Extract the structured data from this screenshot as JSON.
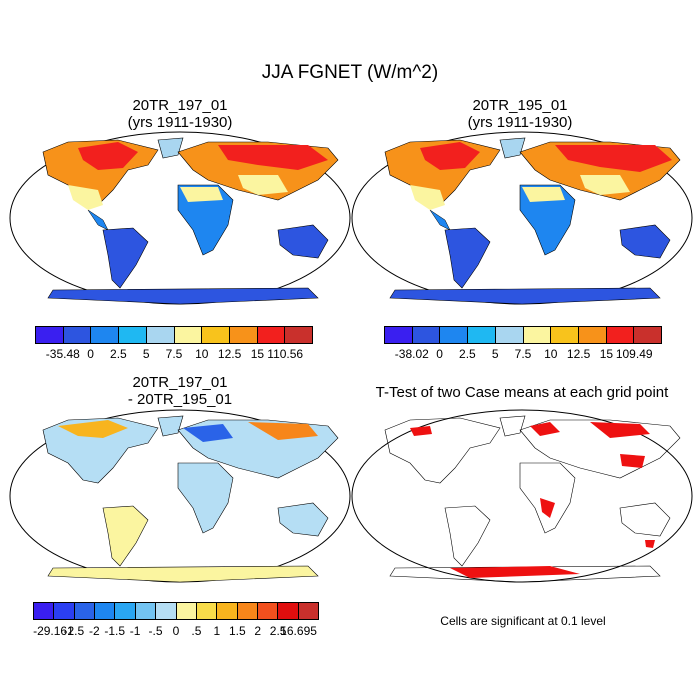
{
  "title": "JJA FGNET (W/m^2)",
  "panels": {
    "top_left": {
      "line1": "20TR_197_01",
      "line2": "(yrs 1911-1930)"
    },
    "top_right": {
      "line1": "20TR_195_01",
      "line2": "(yrs 1911-1930)"
    },
    "bottom_left": {
      "line1": "20TR_197_01",
      "line2": "- 20TR_195_01"
    },
    "bottom_right": {
      "line1": "T-Test of two Case means at each grid point"
    }
  },
  "colorbar_top_left": {
    "labels": [
      "-35.48",
      "0",
      "2.5",
      "5",
      "7.5",
      "10",
      "12.5",
      "15",
      "110.56"
    ],
    "colors": [
      "#3a1ff0",
      "#2d55e0",
      "#1e86f0",
      "#1fb8f2",
      "#a9d6f0",
      "#fbf5a0",
      "#f8c31c",
      "#f7921a",
      "#f2201e",
      "#c9302c"
    ]
  },
  "colorbar_top_right": {
    "labels": [
      "-38.02",
      "0",
      "2.5",
      "5",
      "7.5",
      "10",
      "12.5",
      "15",
      "109.49"
    ],
    "colors": [
      "#3a1ff0",
      "#2d55e0",
      "#1e86f0",
      "#1fb8f2",
      "#a9d6f0",
      "#fbf5a0",
      "#f8c31c",
      "#f7921a",
      "#f2201e",
      "#c9302c"
    ]
  },
  "colorbar_bottom_left": {
    "labels": [
      "-29.161",
      "-2.5",
      "-2",
      "-1.5",
      "-1",
      "-.5",
      "0",
      ".5",
      "1",
      "1.5",
      "2",
      "2.5",
      "16.695"
    ],
    "colors": [
      "#3a1ff0",
      "#2b3ff2",
      "#2a63e8",
      "#1e86f0",
      "#2aa6f2",
      "#73c4f2",
      "#b5def4",
      "#fbf5a0",
      "#f8dc4a",
      "#f8b41e",
      "#f7861a",
      "#f2501e",
      "#e00e0e",
      "#c9302c"
    ]
  },
  "significance_note": "Cells are significant at 0.1 level",
  "map_colors": {
    "ocean": "#ffffff",
    "coast": "#000000",
    "significant": "#ee1111"
  }
}
